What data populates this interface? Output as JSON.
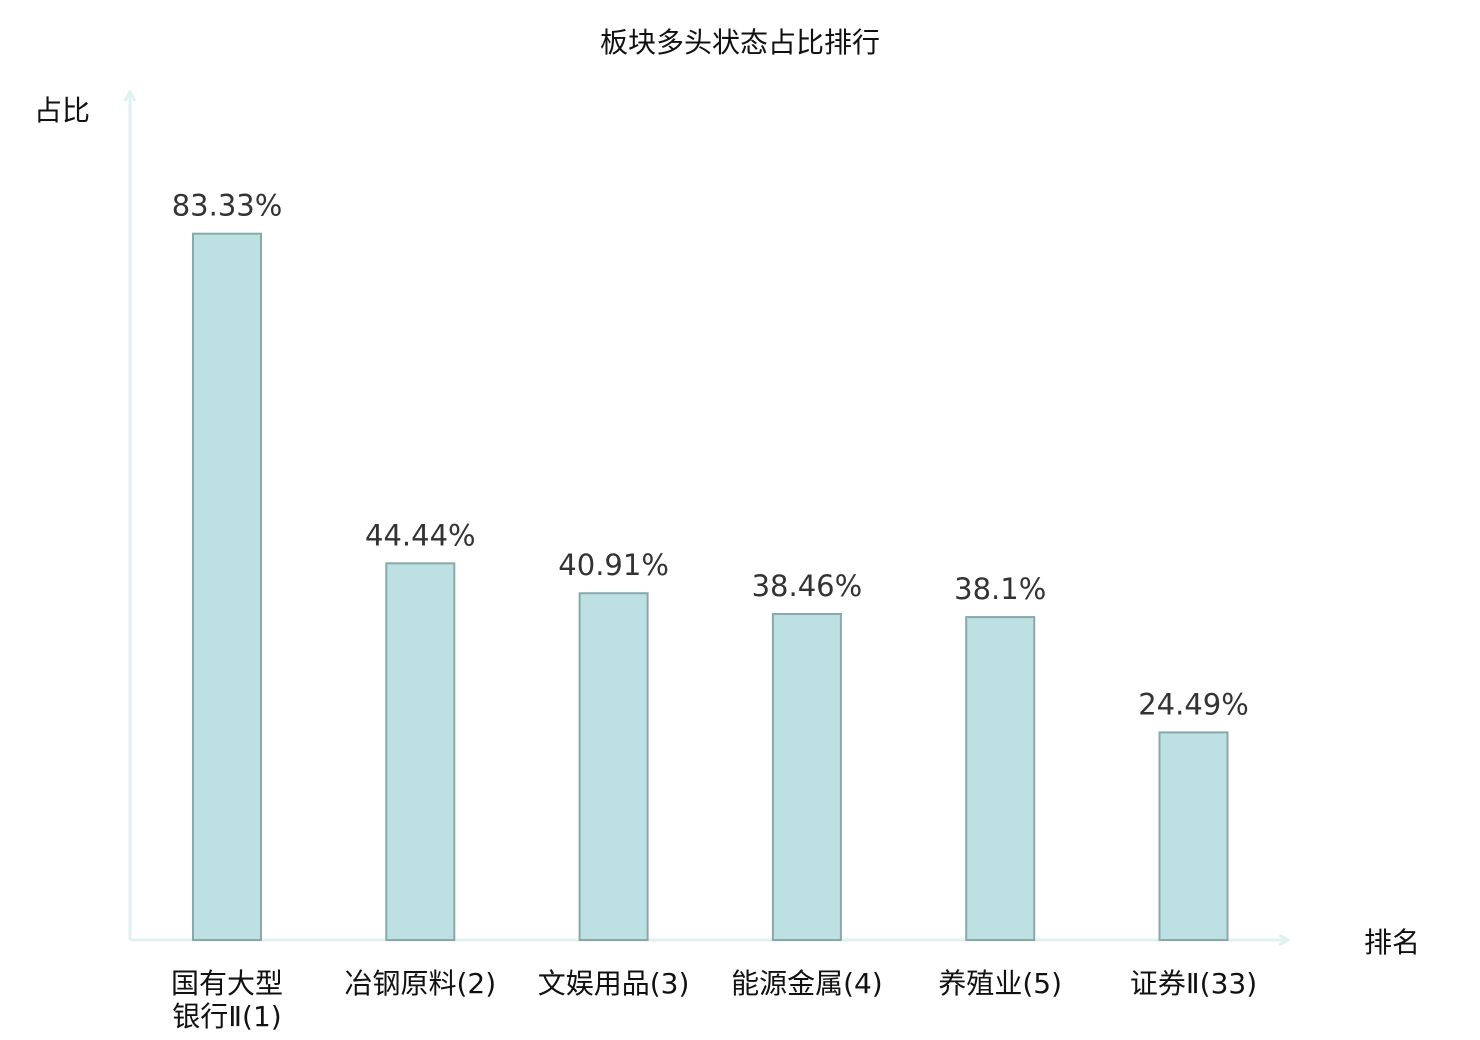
{
  "chart_data": {
    "type": "bar",
    "title": "板块多头状态占比排行",
    "ylabel": "占比",
    "xlabel": "排名",
    "ylim": [
      0,
      100
    ],
    "categories": [
      {
        "line1": "国有大型",
        "line2": "银行Ⅱ(1)"
      },
      {
        "line1": "冶钢原料(2)",
        "line2": ""
      },
      {
        "line1": "文娱用品(3)",
        "line2": ""
      },
      {
        "line1": "能源金属(4)",
        "line2": ""
      },
      {
        "line1": "养殖业(5)",
        "line2": ""
      },
      {
        "line1": "证券Ⅱ(33)",
        "line2": ""
      }
    ],
    "values": [
      83.33,
      44.44,
      40.91,
      38.46,
      38.1,
      24.49
    ],
    "value_labels": [
      "83.33%",
      "44.44%",
      "40.91%",
      "38.46%",
      "38.1%",
      "24.49%"
    ],
    "highlight_index": 5,
    "grid": false,
    "legend": "none"
  },
  "colors": {
    "bar_fill": "#bde0e2",
    "bar_stroke": "#8aa8aa",
    "axis": "#dff2ef",
    "highlight_text": "#e0201c",
    "text": "#111111",
    "value_text": "#333333"
  }
}
